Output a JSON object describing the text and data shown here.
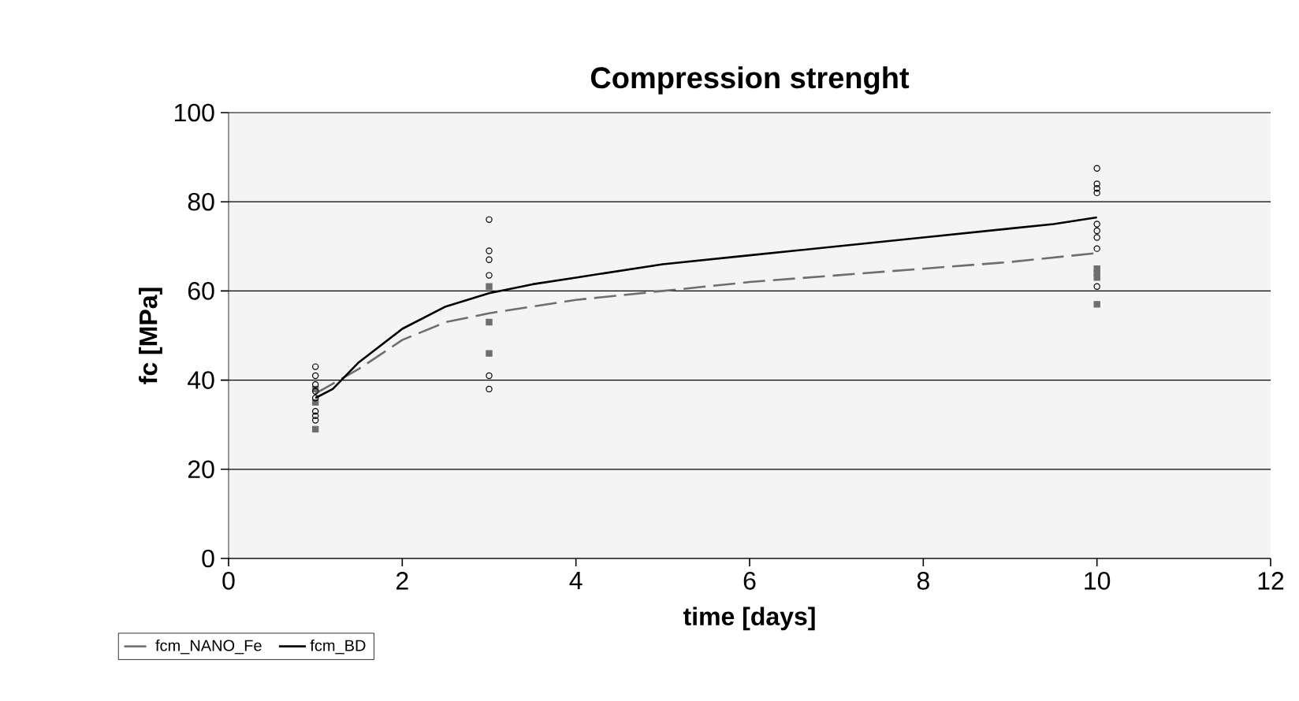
{
  "chart_data": {
    "type": "line",
    "title": "Compression strenght",
    "xlabel": "time [days]",
    "ylabel": "fc [MPa]",
    "xlim": [
      0,
      12
    ],
    "xticks": [
      0,
      2,
      4,
      6,
      8,
      10,
      12
    ],
    "ylim": [
      0,
      100
    ],
    "yticks": [
      0,
      20,
      40,
      60,
      80,
      100
    ],
    "grid": "y",
    "legend": "bottom left",
    "series": [
      {
        "name": "fcm_NANO_Fe",
        "color": "#6e6e6e",
        "line_style": "dashed",
        "marker": "none",
        "x": [
          1,
          1.5,
          2,
          2.5,
          3,
          4,
          5,
          6,
          7,
          8,
          9,
          10
        ],
        "values": [
          37,
          42.5,
          49,
          53,
          55,
          58,
          60,
          62,
          63.5,
          65,
          66.5,
          68.5
        ]
      },
      {
        "name": "fcm_BD",
        "color": "#000000",
        "line_style": "solid",
        "marker": "none",
        "x": [
          1,
          1.2,
          1.5,
          2,
          2.5,
          3,
          3.5,
          4,
          5,
          6,
          7,
          8,
          9,
          9.5,
          10
        ],
        "values": [
          36,
          38,
          44,
          51.5,
          56.5,
          59.5,
          61.5,
          63,
          66,
          68,
          70,
          72,
          74,
          75,
          76.5
        ]
      },
      {
        "type": "scatter",
        "color": "#6e6e6e",
        "marker": "square",
        "x": [
          1,
          1,
          1,
          3,
          3,
          3,
          10,
          10,
          10,
          10
        ],
        "values": [
          38,
          35,
          29,
          61,
          53,
          46,
          65,
          64,
          63,
          57
        ]
      },
      {
        "type": "scatter",
        "color": "#000000",
        "marker": "circle",
        "x": [
          1,
          1,
          1,
          1,
          1,
          1,
          1,
          1,
          3,
          3,
          3,
          3,
          3,
          3,
          10,
          10,
          10,
          10,
          10,
          10,
          10,
          10,
          10
        ],
        "values": [
          43,
          41,
          39,
          37.5,
          36,
          33,
          32,
          31,
          76,
          69,
          67,
          63.5,
          41,
          38,
          87.5,
          84,
          83,
          82,
          75,
          73.5,
          72,
          69.5,
          61
        ]
      }
    ]
  }
}
